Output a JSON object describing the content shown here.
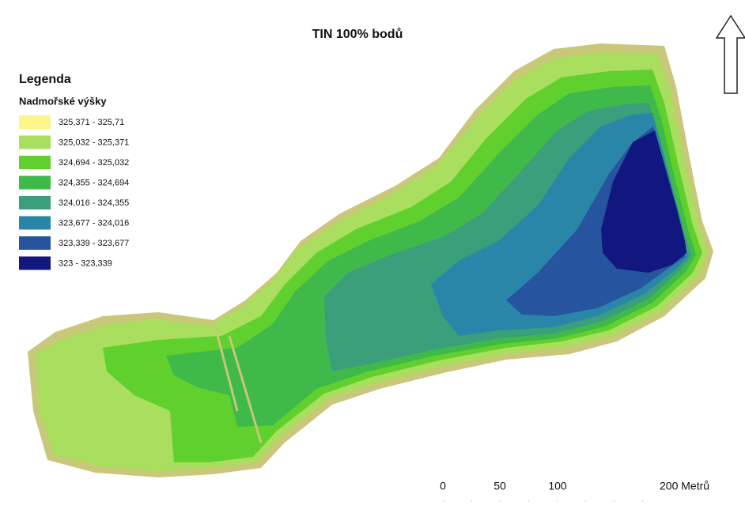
{
  "title": "TIN 100% bodů",
  "legend": {
    "title": "Legenda",
    "subtitle": "Nadmořské výšky",
    "items": [
      {
        "label": "325,371 - 325,71",
        "color": "#fbf58a"
      },
      {
        "label": "325,032 - 325,371",
        "color": "#a9de5e"
      },
      {
        "label": "324,694 - 325,032",
        "color": "#5fd02e"
      },
      {
        "label": "324,355 - 324,694",
        "color": "#3fb94a"
      },
      {
        "label": "324,016 - 324,355",
        "color": "#3a9f7a"
      },
      {
        "label": "323,677 - 324,016",
        "color": "#2a86a9"
      },
      {
        "label": "323,339 - 323,677",
        "color": "#27549f"
      },
      {
        "label": "323 - 323,339",
        "color": "#12177f"
      }
    ]
  },
  "scale_bar": {
    "labels": [
      "0",
      "50",
      "100",
      "200 Metrů"
    ]
  }
}
